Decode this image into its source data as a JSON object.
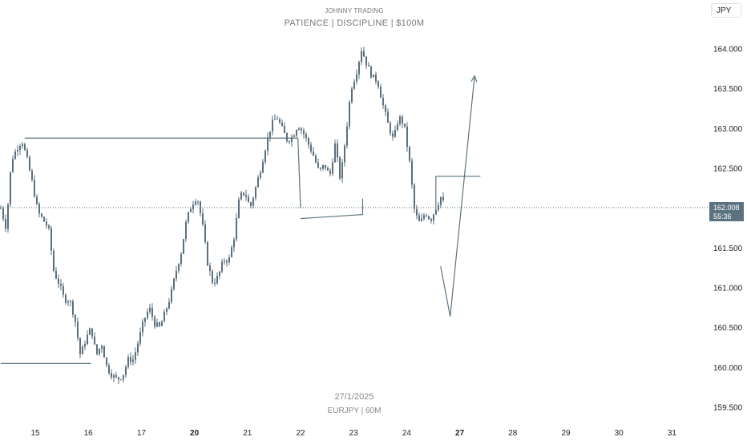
{
  "header": {
    "title": "JOHNNY TRADING",
    "subtitle": "PATIENCE  |  DISCIPLINE  |  $100M"
  },
  "currency": "JPY",
  "watermark": {
    "date": "27/1/2025",
    "symbol": "EURJPY | 60M"
  },
  "last_price": {
    "price": "162.008",
    "countdown": "55:36"
  },
  "colors": {
    "candle": "#596e7c",
    "axis_text": "#222222",
    "badge": "#5b7381",
    "drawing": "#5b7381"
  },
  "chart_data": {
    "type": "candlestick",
    "symbol": "EURJPY",
    "timeframe": "60M",
    "ylim": [
      159.45,
      164.15
    ],
    "y_ticks": [
      "164.000",
      "163.500",
      "163.000",
      "162.500",
      "162.000",
      "161.500",
      "161.000",
      "160.500",
      "160.000",
      "159.500"
    ],
    "x_ticks": [
      {
        "label": "15",
        "bold": false
      },
      {
        "label": "16",
        "bold": false
      },
      {
        "label": "17",
        "bold": false
      },
      {
        "label": "20",
        "bold": true
      },
      {
        "label": "21",
        "bold": false
      },
      {
        "label": "22",
        "bold": false
      },
      {
        "label": "23",
        "bold": false
      },
      {
        "label": "24",
        "bold": false
      },
      {
        "label": "27",
        "bold": true
      },
      {
        "label": "28",
        "bold": false
      },
      {
        "label": "29",
        "bold": false
      },
      {
        "label": "30",
        "bold": false
      },
      {
        "label": "31",
        "bold": false
      }
    ],
    "x_domain": [
      -0.65,
      12.3
    ],
    "close_path": [
      [
        -0.65,
        162.0
      ],
      [
        -0.55,
        161.75
      ],
      [
        -0.45,
        162.6
      ],
      [
        -0.35,
        162.75
      ],
      [
        -0.25,
        162.85
      ],
      [
        -0.15,
        162.6
      ],
      [
        -0.05,
        162.3
      ],
      [
        0.05,
        161.95
      ],
      [
        0.15,
        161.85
      ],
      [
        0.25,
        161.75
      ],
      [
        0.35,
        161.2
      ],
      [
        0.45,
        161.05
      ],
      [
        0.55,
        160.85
      ],
      [
        0.65,
        160.85
      ],
      [
        0.75,
        160.6
      ],
      [
        0.85,
        160.15
      ],
      [
        0.95,
        160.35
      ],
      [
        1.05,
        160.5
      ],
      [
        1.15,
        160.15
      ],
      [
        1.25,
        160.3
      ],
      [
        1.35,
        160.0
      ],
      [
        1.45,
        159.9
      ],
      [
        1.55,
        159.85
      ],
      [
        1.65,
        159.9
      ],
      [
        1.75,
        160.1
      ],
      [
        1.85,
        160.1
      ],
      [
        1.95,
        160.35
      ],
      [
        2.05,
        160.6
      ],
      [
        2.15,
        160.75
      ],
      [
        2.25,
        160.55
      ],
      [
        2.35,
        160.5
      ],
      [
        2.45,
        160.7
      ],
      [
        2.55,
        160.9
      ],
      [
        2.65,
        161.2
      ],
      [
        2.75,
        161.45
      ],
      [
        2.85,
        161.85
      ],
      [
        2.95,
        162.05
      ],
      [
        3.05,
        162.15
      ],
      [
        3.15,
        161.8
      ],
      [
        3.25,
        161.3
      ],
      [
        3.35,
        161.05
      ],
      [
        3.45,
        161.15
      ],
      [
        3.55,
        161.35
      ],
      [
        3.65,
        161.35
      ],
      [
        3.75,
        161.65
      ],
      [
        3.85,
        162.15
      ],
      [
        3.95,
        162.2
      ],
      [
        4.05,
        162.0
      ],
      [
        4.15,
        162.25
      ],
      [
        4.25,
        162.5
      ],
      [
        4.35,
        162.8
      ],
      [
        4.45,
        163.05
      ],
      [
        4.55,
        163.15
      ],
      [
        4.65,
        163.0
      ],
      [
        4.75,
        162.85
      ],
      [
        4.85,
        162.9
      ],
      [
        4.95,
        163.05
      ],
      [
        5.05,
        162.95
      ],
      [
        5.15,
        162.8
      ],
      [
        5.25,
        162.65
      ],
      [
        5.35,
        162.45
      ],
      [
        5.45,
        162.55
      ],
      [
        5.55,
        162.4
      ],
      [
        5.65,
        162.8
      ],
      [
        5.75,
        162.35
      ],
      [
        5.85,
        162.9
      ],
      [
        5.95,
        163.5
      ],
      [
        6.05,
        163.7
      ],
      [
        6.15,
        164.0
      ],
      [
        6.25,
        163.8
      ],
      [
        6.35,
        163.65
      ],
      [
        6.45,
        163.6
      ],
      [
        6.55,
        163.3
      ],
      [
        6.65,
        163.05
      ],
      [
        6.75,
        162.85
      ],
      [
        6.85,
        163.15
      ],
      [
        6.95,
        163.05
      ],
      [
        7.05,
        162.6
      ],
      [
        7.15,
        161.95
      ],
      [
        7.25,
        161.8
      ],
      [
        7.35,
        161.95
      ],
      [
        7.45,
        161.85
      ],
      [
        7.55,
        162.0
      ],
      [
        7.65,
        162.15
      ],
      [
        7.72,
        162.01
      ]
    ],
    "volatility": 0.04,
    "drawings": [
      {
        "kind": "hline",
        "x0": -0.65,
        "x1": 1.05,
        "y": 160.05
      },
      {
        "kind": "hline",
        "x0": -0.2,
        "x1": 4.95,
        "y": 162.88
      },
      {
        "kind": "polyline",
        "points": [
          [
            4.95,
            162.88
          ],
          [
            5.0,
            162.0
          ]
        ]
      },
      {
        "kind": "polyline",
        "points": [
          [
            5.0,
            161.87
          ],
          [
            6.17,
            161.92
          ],
          [
            6.17,
            162.12
          ]
        ]
      },
      {
        "kind": "polyline",
        "points": [
          [
            7.55,
            161.93
          ],
          [
            7.55,
            162.4
          ],
          [
            8.39,
            162.4
          ]
        ]
      },
      {
        "kind": "arrow",
        "points": [
          [
            7.64,
            161.27
          ],
          [
            7.82,
            160.64
          ],
          [
            8.28,
            163.66
          ]
        ]
      }
    ],
    "last_value": 162.008
  }
}
